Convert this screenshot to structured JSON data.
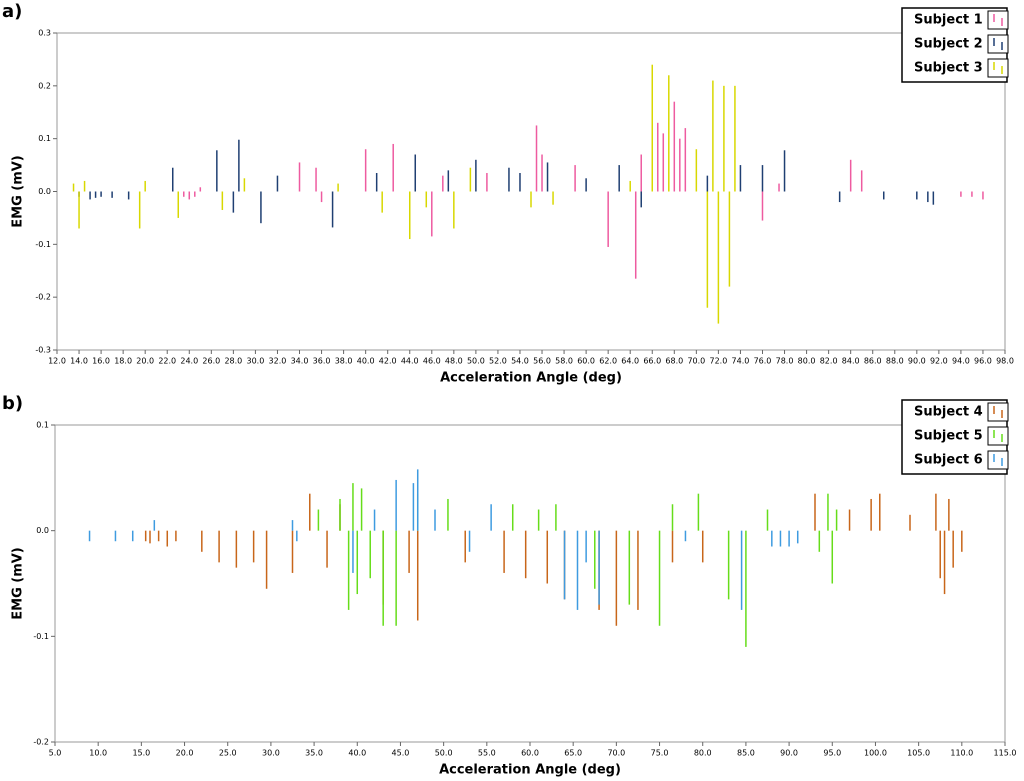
{
  "chart_data": [
    {
      "type": "bar",
      "panel_label": "a)",
      "xlabel": "Acceleration Angle (deg)",
      "ylabel": "EMG (mV)",
      "xlim": [
        12,
        98
      ],
      "ylim": [
        -0.3,
        0.3
      ],
      "xticks": [
        {
          "value": 12,
          "label": "12.0"
        },
        {
          "value": 14,
          "label": "14.0"
        },
        {
          "value": 16,
          "label": "16.0"
        },
        {
          "value": 18,
          "label": "18.0"
        },
        {
          "value": 20,
          "label": "20.0"
        },
        {
          "value": 22,
          "label": "22.0"
        },
        {
          "value": 24,
          "label": "24.0"
        },
        {
          "value": 26,
          "label": "26.0"
        },
        {
          "value": 28,
          "label": "28.0"
        },
        {
          "value": 30,
          "label": "30.0"
        },
        {
          "value": 32,
          "label": "32.0"
        },
        {
          "value": 34,
          "label": "34.0"
        },
        {
          "value": 36,
          "label": "36.0"
        },
        {
          "value": 38,
          "label": "38.0"
        },
        {
          "value": 40,
          "label": "40.0"
        },
        {
          "value": 42,
          "label": "42.0"
        },
        {
          "value": 44,
          "label": "44.0"
        },
        {
          "value": 46,
          "label": "46.0"
        },
        {
          "value": 48,
          "label": "48.0"
        },
        {
          "value": 50,
          "label": "50.0"
        },
        {
          "value": 52,
          "label": "52.0"
        },
        {
          "value": 54,
          "label": "54.0"
        },
        {
          "value": 56,
          "label": "56.0"
        },
        {
          "value": 58,
          "label": "58.0"
        },
        {
          "value": 60,
          "label": "60.0"
        },
        {
          "value": 62,
          "label": "62.0"
        },
        {
          "value": 64,
          "label": "64.0"
        },
        {
          "value": 66,
          "label": "66.0"
        },
        {
          "value": 68,
          "label": "68.0"
        },
        {
          "value": 70,
          "label": "70.0"
        },
        {
          "value": 72,
          "label": "72.0"
        },
        {
          "value": 74,
          "label": "74.0"
        },
        {
          "value": 76,
          "label": "76.0"
        },
        {
          "value": 78,
          "label": "78.0"
        },
        {
          "value": 80,
          "label": "80.0"
        },
        {
          "value": 82,
          "label": "82.0"
        },
        {
          "value": 84,
          "label": "84.0"
        },
        {
          "value": 86,
          "label": "86.0"
        },
        {
          "value": 88,
          "label": "88.0"
        },
        {
          "value": 90,
          "label": "90.0"
        },
        {
          "value": 92,
          "label": "92.0"
        },
        {
          "value": 94,
          "label": "94.0"
        },
        {
          "value": 96,
          "label": "96.0"
        },
        {
          "value": 98,
          "label": "98.0"
        }
      ],
      "yticks": [
        -0.3,
        -0.2,
        -0.1,
        {
          "value": 0,
          "label": "0.0"
        },
        0.1,
        0.2,
        0.3
      ],
      "series": [
        {
          "name": "Subject 1",
          "color": "#ee5ba0",
          "x": [
            23.5,
            24.0,
            24.5,
            25.0,
            34.0,
            35.5,
            36.0,
            40.0,
            42.5,
            44.5,
            46.0,
            47.0,
            51.0,
            55.5,
            56.0,
            59.0,
            62.0,
            64.5,
            65.0,
            66.5,
            67.0,
            68.0,
            68.5,
            69.0,
            76.0,
            77.5,
            84.0,
            85.0,
            94.0,
            95.0,
            96.0
          ],
          "values": [
            -0.01,
            -0.015,
            -0.01,
            0.008,
            0.055,
            0.045,
            -0.02,
            0.08,
            0.09,
            0.07,
            -0.085,
            0.03,
            0.035,
            0.125,
            0.07,
            0.05,
            -0.105,
            -0.165,
            0.07,
            0.13,
            0.11,
            0.17,
            0.1,
            0.12,
            -0.055,
            0.015,
            0.06,
            0.04,
            -0.01,
            -0.01,
            -0.015
          ]
        },
        {
          "name": "Subject 2",
          "color": "#1f3f72",
          "x": [
            14.0,
            15.0,
            15.5,
            16.0,
            17.0,
            18.5,
            22.5,
            26.5,
            28.0,
            28.5,
            30.5,
            32.0,
            37.0,
            41.0,
            44.5,
            47.5,
            50.0,
            53.0,
            54.0,
            56.5,
            60.0,
            63.0,
            65.0,
            71.0,
            74.0,
            76.0,
            78.0,
            83.0,
            87.0,
            90.0,
            91.0,
            91.5
          ],
          "values": [
            -0.01,
            -0.015,
            -0.012,
            -0.01,
            -0.012,
            -0.015,
            0.045,
            0.078,
            -0.04,
            0.098,
            -0.06,
            0.03,
            -0.068,
            0.035,
            0.07,
            0.04,
            0.06,
            0.045,
            0.035,
            0.055,
            0.025,
            0.05,
            -0.03,
            0.03,
            0.05,
            0.05,
            0.078,
            -0.02,
            -0.015,
            -0.015,
            -0.02,
            -0.025
          ]
        },
        {
          "name": "Subject 3",
          "color": "#d8d800",
          "x": [
            13.5,
            14.0,
            14.5,
            19.5,
            20.0,
            23.0,
            27.0,
            29.0,
            37.5,
            41.5,
            44.0,
            45.5,
            48.0,
            49.5,
            55.0,
            57.0,
            64.0,
            66.0,
            67.5,
            70.0,
            71.0,
            71.5,
            72.0,
            72.5,
            73.0,
            73.5
          ],
          "values": [
            0.015,
            -0.07,
            0.02,
            -0.07,
            0.02,
            -0.05,
            -0.035,
            0.025,
            0.015,
            -0.04,
            -0.09,
            -0.03,
            -0.07,
            0.045,
            -0.03,
            -0.025,
            0.02,
            0.24,
            0.22,
            0.08,
            -0.22,
            0.21,
            -0.25,
            0.2,
            -0.18,
            0.2
          ]
        }
      ]
    },
    {
      "type": "bar",
      "panel_label": "b)",
      "xlabel": "Acceleration Angle (deg)",
      "ylabel": "EMG (mV)",
      "xlim": [
        5,
        115
      ],
      "ylim": [
        -0.2,
        0.1
      ],
      "xticks": [
        {
          "value": 5,
          "label": "5.0"
        },
        {
          "value": 10,
          "label": "10.0"
        },
        {
          "value": 15,
          "label": "15.0"
        },
        {
          "value": 20,
          "label": "20.0"
        },
        {
          "value": 25,
          "label": "25.0"
        },
        {
          "value": 30,
          "label": "30.0"
        },
        {
          "value": 35,
          "label": "35.0"
        },
        {
          "value": 40,
          "label": "40.0"
        },
        {
          "value": 45,
          "label": "45.0"
        },
        {
          "value": 50,
          "label": "50.0"
        },
        {
          "value": 55,
          "label": "55.0"
        },
        {
          "value": 60,
          "label": "60.0"
        },
        {
          "value": 65,
          "label": "65.0"
        },
        {
          "value": 70,
          "label": "70.0"
        },
        {
          "value": 75,
          "label": "75.0"
        },
        {
          "value": 80,
          "label": "80.0"
        },
        {
          "value": 85,
          "label": "85.0"
        },
        {
          "value": 90,
          "label": "90.0"
        },
        {
          "value": 95,
          "label": "95.0"
        },
        {
          "value": 100,
          "label": "100.0"
        },
        {
          "value": 105,
          "label": "105.0"
        },
        {
          "value": 110,
          "label": "110.0"
        },
        {
          "value": 115,
          "label": "115.0"
        }
      ],
      "yticks": [
        -0.2,
        -0.1,
        {
          "value": 0,
          "label": "0.0"
        },
        0.1
      ],
      "series": [
        {
          "name": "Subject 4",
          "color": "#c8661a",
          "x": [
            15.5,
            16.0,
            17.0,
            18.0,
            19.0,
            22.0,
            24.0,
            26.0,
            28.0,
            29.5,
            32.5,
            34.5,
            36.5,
            38.0,
            43.0,
            46.0,
            47.0,
            52.5,
            57.0,
            59.5,
            62.0,
            64.0,
            68.0,
            70.0,
            72.5,
            76.5,
            80.0,
            93.0,
            97.0,
            99.5,
            100.5,
            104.0,
            107.0,
            107.5,
            108.0,
            108.5,
            109.0,
            110.0
          ],
          "values": [
            -0.01,
            -0.012,
            -0.01,
            -0.015,
            -0.01,
            -0.02,
            -0.03,
            -0.035,
            -0.03,
            -0.055,
            -0.04,
            0.035,
            -0.035,
            0.025,
            -0.07,
            -0.04,
            -0.085,
            -0.03,
            -0.04,
            -0.045,
            -0.05,
            -0.065,
            -0.075,
            -0.09,
            -0.075,
            -0.03,
            -0.03,
            0.035,
            0.02,
            0.03,
            0.035,
            0.015,
            0.035,
            -0.045,
            -0.06,
            0.03,
            -0.035,
            -0.02
          ]
        },
        {
          "name": "Subject 5",
          "color": "#66dd1a",
          "x": [
            35.5,
            38.0,
            39.0,
            39.5,
            40.0,
            40.5,
            41.5,
            43.0,
            44.5,
            47.0,
            50.5,
            58.0,
            61.0,
            63.0,
            67.5,
            71.5,
            75.0,
            76.5,
            79.5,
            83.0,
            85.0,
            87.5,
            93.5,
            94.5,
            95.0,
            95.5
          ],
          "values": [
            0.02,
            0.03,
            -0.075,
            0.045,
            -0.06,
            0.04,
            -0.045,
            -0.09,
            -0.09,
            0.035,
            0.03,
            0.025,
            0.02,
            0.025,
            -0.055,
            -0.07,
            -0.09,
            0.025,
            0.035,
            -0.065,
            -0.11,
            0.02,
            -0.02,
            0.035,
            -0.05,
            0.02
          ]
        },
        {
          "name": "Subject 6",
          "color": "#3e9be0",
          "x": [
            9.0,
            12.0,
            14.0,
            16.5,
            32.5,
            33.0,
            39.5,
            42.0,
            44.5,
            46.5,
            47.0,
            49.0,
            53.0,
            55.5,
            64.0,
            65.5,
            66.5,
            68.0,
            78.0,
            84.5,
            88.0,
            89.0,
            90.0,
            91.0
          ],
          "values": [
            -0.01,
            -0.01,
            -0.01,
            0.01,
            0.01,
            -0.01,
            -0.04,
            0.02,
            0.048,
            0.045,
            0.058,
            0.02,
            -0.02,
            0.025,
            -0.065,
            -0.075,
            -0.03,
            -0.07,
            -0.01,
            -0.075,
            -0.015,
            -0.015,
            -0.015,
            -0.012
          ]
        }
      ]
    }
  ]
}
